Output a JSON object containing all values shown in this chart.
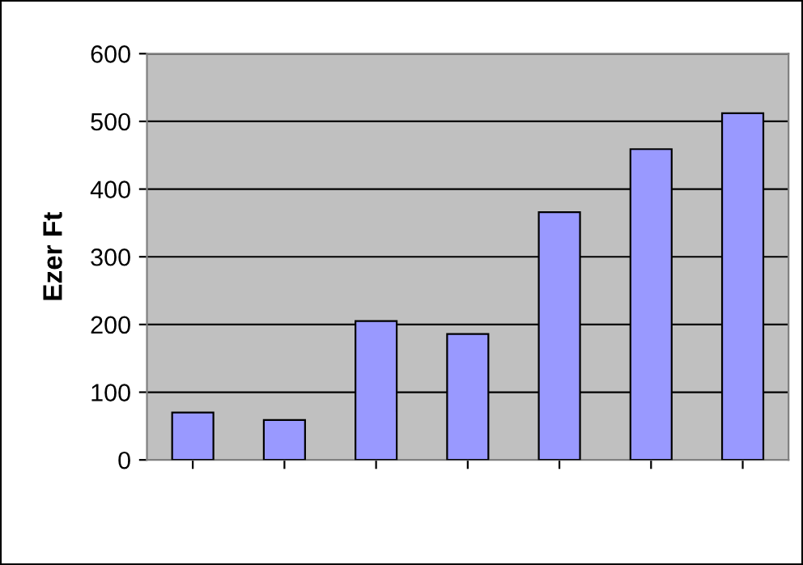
{
  "chart_data": {
    "type": "bar",
    "ylabel": "Ezer Ft",
    "categories": [
      null,
      null,
      null,
      null,
      null,
      null,
      null
    ],
    "series": [
      {
        "color": "#9999ff",
        "values": [
          70,
          59,
          205,
          186,
          366,
          459,
          512
        ]
      }
    ],
    "ylim": [
      0,
      600
    ],
    "yticks": [
      0,
      100,
      200,
      300,
      400,
      500,
      600
    ],
    "grid": "y",
    "legend": false
  }
}
